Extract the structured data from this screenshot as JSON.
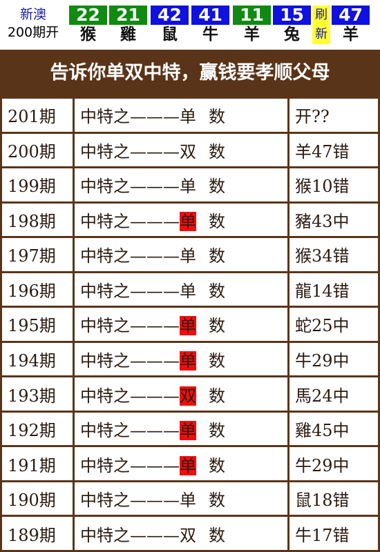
{
  "header": {
    "region": "新澳",
    "draw_label": "200期开",
    "balls": [
      {
        "number": "22",
        "zodiac": "猴",
        "color": "#108a10"
      },
      {
        "number": "21",
        "zodiac": "雞",
        "color": "#108a10"
      },
      {
        "number": "42",
        "zodiac": "鼠",
        "color": "#1010e0"
      },
      {
        "number": "41",
        "zodiac": "牛",
        "color": "#1010e0"
      },
      {
        "number": "11",
        "zodiac": "羊",
        "color": "#108a10"
      },
      {
        "number": "15",
        "zodiac": "兔",
        "color": "#1010e0"
      },
      {
        "number": "47",
        "zodiac": "羊",
        "color": "#1010e0"
      }
    ],
    "refresh": [
      "刷",
      "新"
    ]
  },
  "banner": "告诉你单双中特，赢钱要孝顺父母",
  "table": {
    "rows": [
      {
        "period": "201期",
        "prefix": "中特之———",
        "pick": "单",
        "suffix": "数",
        "hit": false,
        "result": "开??"
      },
      {
        "period": "200期",
        "prefix": "中特之———",
        "pick": "双",
        "suffix": "数",
        "hit": false,
        "result": "羊47错"
      },
      {
        "period": "199期",
        "prefix": "中特之———",
        "pick": "单",
        "suffix": "数",
        "hit": false,
        "result": "猴10错"
      },
      {
        "period": "198期",
        "prefix": "中特之———",
        "pick": "单",
        "suffix": "数",
        "hit": true,
        "result": "豬43中"
      },
      {
        "period": "197期",
        "prefix": "中特之———",
        "pick": "单",
        "suffix": "数",
        "hit": false,
        "result": "猴34错"
      },
      {
        "period": "196期",
        "prefix": "中特之———",
        "pick": "单",
        "suffix": "数",
        "hit": false,
        "result": "龍14错"
      },
      {
        "period": "195期",
        "prefix": "中特之———",
        "pick": "单",
        "suffix": "数",
        "hit": true,
        "result": "蛇25中"
      },
      {
        "period": "194期",
        "prefix": "中特之———",
        "pick": "单",
        "suffix": "数",
        "hit": true,
        "result": "牛29中"
      },
      {
        "period": "193期",
        "prefix": "中特之———",
        "pick": "双",
        "suffix": "数",
        "hit": true,
        "result": "馬24中"
      },
      {
        "period": "192期",
        "prefix": "中特之———",
        "pick": "单",
        "suffix": "数",
        "hit": true,
        "result": "雞45中"
      },
      {
        "period": "191期",
        "prefix": "中特之———",
        "pick": "单",
        "suffix": "数",
        "hit": true,
        "result": "牛29中"
      },
      {
        "period": "190期",
        "prefix": "中特之———",
        "pick": "单",
        "suffix": "数",
        "hit": false,
        "result": "鼠18错"
      },
      {
        "period": "189期",
        "prefix": "中特之———",
        "pick": "双",
        "suffix": "数",
        "hit": false,
        "result": "牛17错"
      }
    ]
  }
}
